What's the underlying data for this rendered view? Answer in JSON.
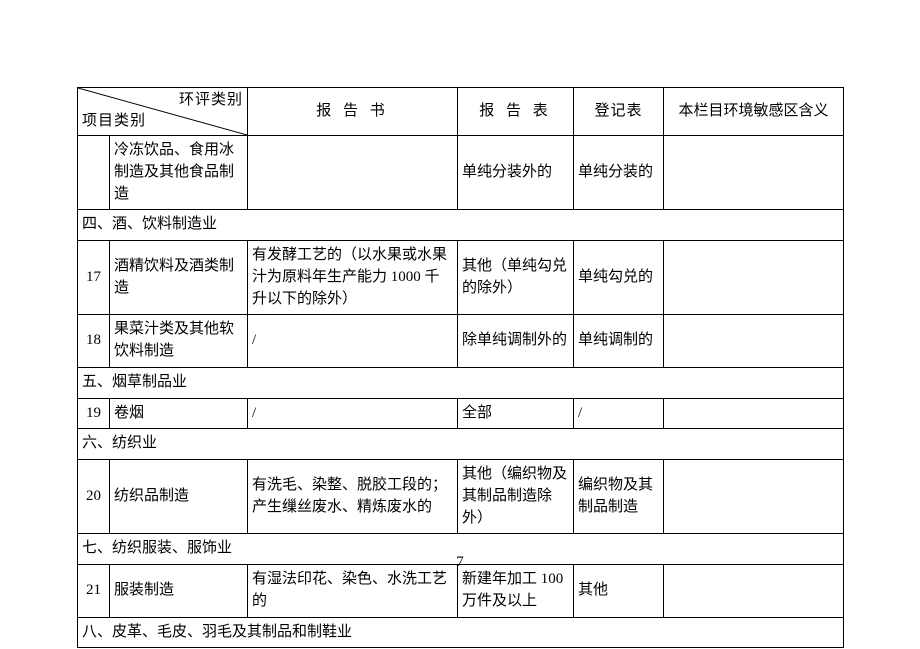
{
  "colwidths": {
    "num": 32,
    "cat": 138,
    "rep": 210,
    "tab": 116,
    "reg": 90,
    "env": 180
  },
  "header": {
    "diag_top": "环评类别",
    "diag_bot": "项目类别",
    "report": "报 告 书",
    "table": "报 告 表",
    "register": "登记表",
    "env": "本栏目环境敏感区含义"
  },
  "page_number": "7",
  "rows": [
    {
      "type": "data",
      "num": "",
      "cat": "冷冻饮品、食用冰制造及其他食品制造",
      "rep": "",
      "tab": "单纯分装外的",
      "reg": "单纯分装的",
      "env": ""
    },
    {
      "type": "section",
      "text": "四、酒、饮料制造业"
    },
    {
      "type": "data",
      "num": "17",
      "cat": "酒精饮料及酒类制造",
      "rep": "有发酵工艺的（以水果或水果汁为原料年生产能力 1000 千升以下的除外）",
      "tab": "其他（单纯勾兑的除外）",
      "reg": "单纯勾兑的",
      "env": ""
    },
    {
      "type": "data",
      "num": "18",
      "cat": "果菜汁类及其他软饮料制造",
      "rep": "/",
      "tab": "除单纯调制外的",
      "reg": "单纯调制的",
      "env": ""
    },
    {
      "type": "section",
      "text": "五、烟草制品业"
    },
    {
      "type": "data",
      "num": "19",
      "cat": "卷烟",
      "rep": "/",
      "tab": "全部",
      "reg": "/",
      "env": ""
    },
    {
      "type": "section",
      "text": "六、纺织业"
    },
    {
      "type": "data",
      "num": "20",
      "cat": "纺织品制造",
      "rep": "有洗毛、染整、脱胶工段的；产生缫丝废水、精炼废水的",
      "tab": "其他（编织物及其制品制造除外）",
      "reg": "编织物及其制品制造",
      "env": ""
    },
    {
      "type": "section",
      "text": "七、纺织服装、服饰业"
    },
    {
      "type": "data",
      "num": "21",
      "cat": "服装制造",
      "rep": "有湿法印花、染色、水洗工艺的",
      "tab": "新建年加工 100 万件及以上",
      "reg": "其他",
      "env": ""
    },
    {
      "type": "section",
      "text": "八、皮革、毛皮、羽毛及其制品和制鞋业"
    }
  ]
}
